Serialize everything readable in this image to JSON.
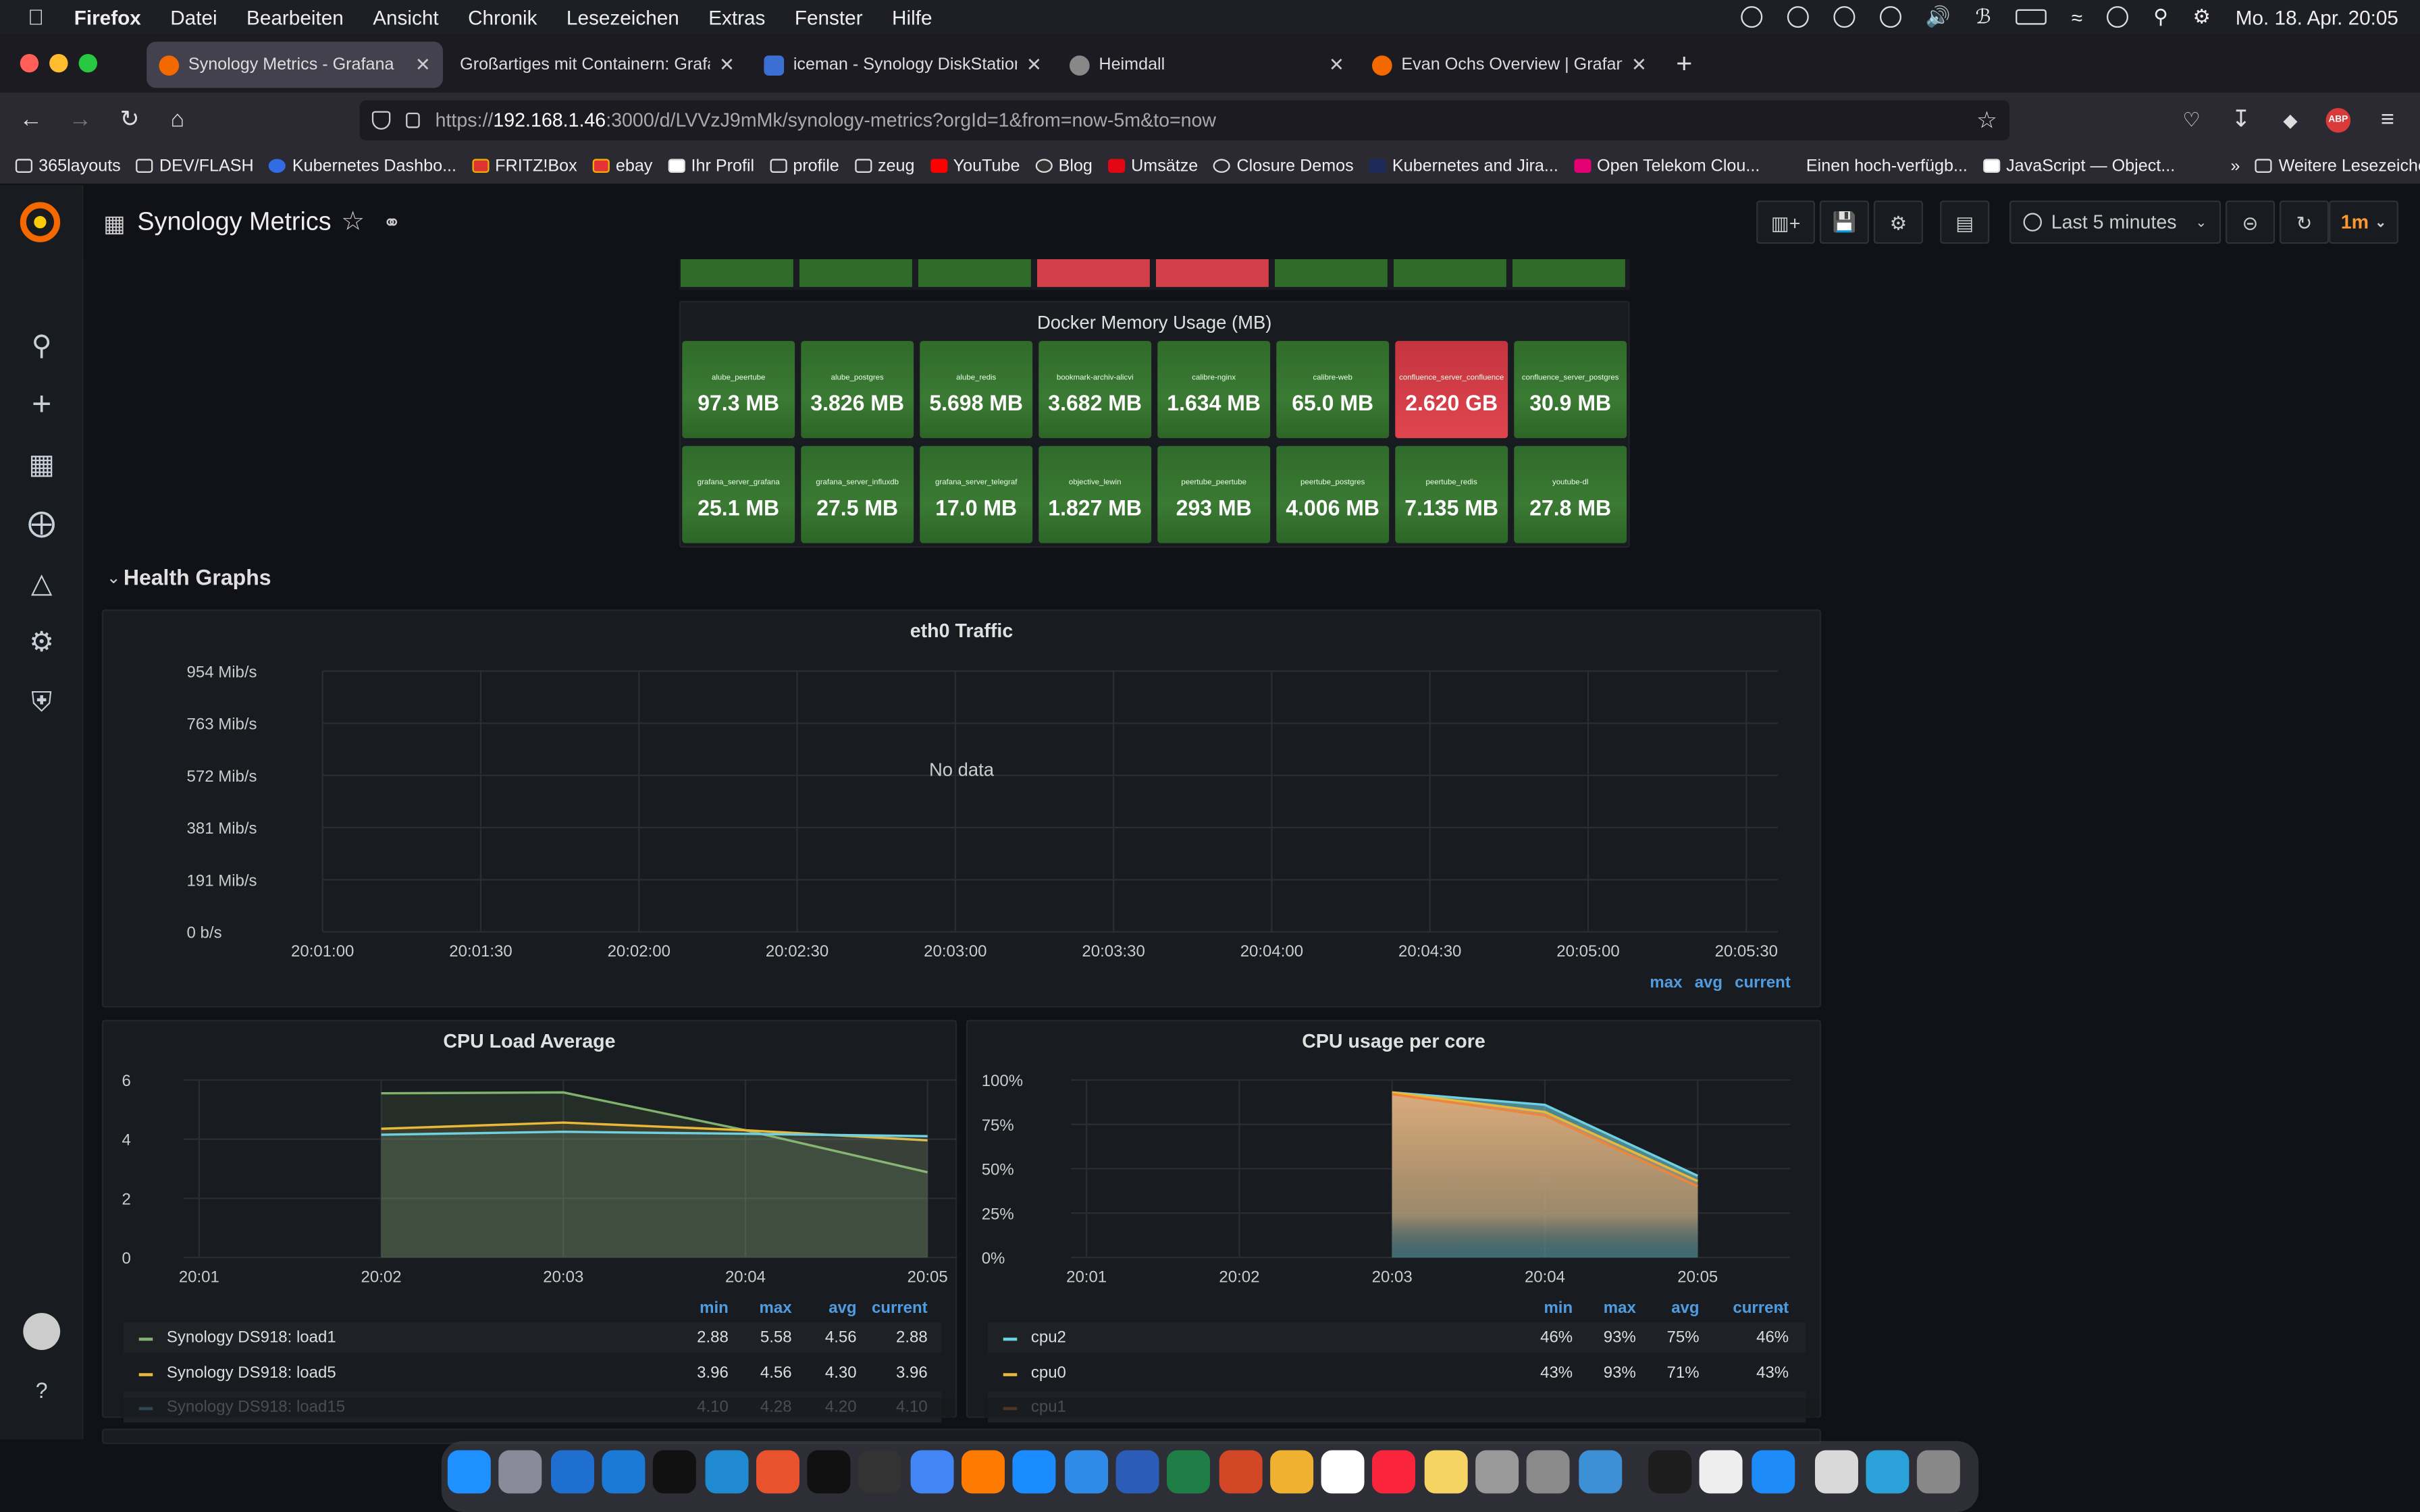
{
  "menubar": {
    "app": "Firefox",
    "items": [
      "Datei",
      "Bearbeiten",
      "Ansicht",
      "Chronik",
      "Lesezeichen",
      "Extras",
      "Fenster",
      "Hilfe"
    ],
    "clock": "Mo. 18. Apr.  20:05"
  },
  "tabs": [
    {
      "title": "Synology Metrics - Grafana",
      "color": "#f46800"
    },
    {
      "title": "Großartiges mit Containern: Grafana",
      "color": ""
    },
    {
      "title": "iceman - Synology DiskStation",
      "color": "#3b6fd1"
    },
    {
      "title": "Heimdall",
      "color": "#888888"
    },
    {
      "title": "Evan Ochs Overview | Grafana L",
      "color": "#f46800"
    }
  ],
  "url": {
    "prefix": "https://",
    "host": "192.168.1.46",
    "rest": ":3000/d/LVVzJ9mMk/synology-metrics?orgId=1&from=now-5m&to=now"
  },
  "bookmarks": [
    "365layouts",
    "DEV/FLASH",
    "Kubernetes Dashbo...",
    "FRITZ!Box",
    "ebay",
    "Ihr Profil",
    "profile",
    "zeug",
    "YouTube",
    "Blog",
    "Umsätze",
    "Closure Demos",
    "Kubernetes and Jira...",
    "Open Telekom Clou...",
    "Einen hoch-verfügb...",
    "JavaScript — Object...",
    "Weitere Lesezeichen"
  ],
  "dashboard": {
    "title": "Synology Metrics",
    "time_range": "Last 5 minutes",
    "refresh": "1m"
  },
  "docker_memory": {
    "title": "Docker Memory Usage (MB)",
    "tiles": [
      {
        "name": "alube_peertube",
        "value": "97.3 MB",
        "status": "ok"
      },
      {
        "name": "alube_postgres",
        "value": "3.826 MB",
        "status": "ok"
      },
      {
        "name": "alube_redis",
        "value": "5.698 MB",
        "status": "ok"
      },
      {
        "name": "bookmark-archiv-alicvi",
        "value": "3.682 MB",
        "status": "ok"
      },
      {
        "name": "calibre-nginx",
        "value": "1.634 MB",
        "status": "ok"
      },
      {
        "name": "calibre-web",
        "value": "65.0 MB",
        "status": "ok"
      },
      {
        "name": "confluence_server_confluence",
        "value": "2.620 GB",
        "status": "alert"
      },
      {
        "name": "confluence_server_postgres",
        "value": "30.9 MB",
        "status": "ok"
      },
      {
        "name": "grafana_server_grafana",
        "value": "25.1 MB",
        "status": "ok"
      },
      {
        "name": "grafana_server_influxdb",
        "value": "27.5 MB",
        "status": "ok"
      },
      {
        "name": "grafana_server_telegraf",
        "value": "17.0 MB",
        "status": "ok"
      },
      {
        "name": "objective_lewin",
        "value": "1.827 MB",
        "status": "ok"
      },
      {
        "name": "peertube_peertube",
        "value": "293 MB",
        "status": "ok"
      },
      {
        "name": "peertube_postgres",
        "value": "4.006 MB",
        "status": "ok"
      },
      {
        "name": "peertube_redis",
        "value": "7.135 MB",
        "status": "ok"
      },
      {
        "name": "youtube-dl",
        "value": "27.8 MB",
        "status": "ok"
      }
    ]
  },
  "section": {
    "title": "Health Graphs"
  },
  "eth0": {
    "title": "eth0 Traffic",
    "no_data": "No data",
    "yticks": [
      "954 Mib/s",
      "763 Mib/s",
      "572 Mib/s",
      "381 Mib/s",
      "191 Mib/s",
      "0 b/s"
    ],
    "xticks": [
      "20:01:00",
      "20:01:30",
      "20:02:00",
      "20:02:30",
      "20:03:00",
      "20:03:30",
      "20:04:00",
      "20:04:30",
      "20:05:00",
      "20:05:30"
    ],
    "legend_headers": [
      "max",
      "avg",
      "current"
    ]
  },
  "chart_data": [
    {
      "type": "line",
      "title": "CPU Load Average",
      "x": [
        "20:02",
        "20:03",
        "20:04",
        "20:05"
      ],
      "ylim": [
        0,
        6
      ],
      "yticks": [
        "6",
        "4",
        "2",
        "0"
      ],
      "xticks": [
        "20:01",
        "20:02",
        "20:03",
        "20:04",
        "20:05"
      ],
      "series": [
        {
          "name": "Synology DS918: load1",
          "color": "#7eb26d",
          "values": [
            5.55,
            5.58,
            4.3,
            2.88
          ],
          "min": "2.88",
          "max": "5.58",
          "avg": "4.56",
          "current": "2.88"
        },
        {
          "name": "Synology DS918: load5",
          "color": "#eab839",
          "values": [
            4.35,
            4.56,
            4.3,
            3.96
          ],
          "min": "3.96",
          "max": "4.56",
          "avg": "4.30",
          "current": "3.96"
        },
        {
          "name": "Synology DS918: load15",
          "color": "#6ed0e0",
          "values": [
            4.15,
            4.25,
            4.18,
            4.1
          ],
          "min": "4.10",
          "max": "4.28",
          "avg": "4.20",
          "current": "4.10"
        }
      ],
      "legend_headers": [
        "min",
        "max",
        "avg",
        "current"
      ]
    },
    {
      "type": "area",
      "title": "CPU usage per core",
      "x": [
        "20:03",
        "20:04",
        "20:05"
      ],
      "ylim": [
        0,
        100
      ],
      "yticks": [
        "100%",
        "75%",
        "50%",
        "25%",
        "0%"
      ],
      "xticks": [
        "20:01",
        "20:02",
        "20:03",
        "20:04",
        "20:05"
      ],
      "series": [
        {
          "name": "cpu2",
          "color": "#6ed0e0",
          "values": [
            93,
            86,
            46
          ],
          "min": "46%",
          "max": "93%",
          "avg": "75%",
          "current": "46%"
        },
        {
          "name": "cpu0",
          "color": "#eab839",
          "values": [
            93,
            82,
            43
          ],
          "min": "43%",
          "max": "93%",
          "avg": "71%",
          "current": "43%"
        },
        {
          "name": "cpu1",
          "color": "#ef843c",
          "values": [
            92,
            80,
            40
          ],
          "min": "",
          "max": "",
          "avg": "",
          "current": ""
        }
      ],
      "legend_headers": [
        "min",
        "max",
        "avg",
        "current"
      ]
    }
  ]
}
